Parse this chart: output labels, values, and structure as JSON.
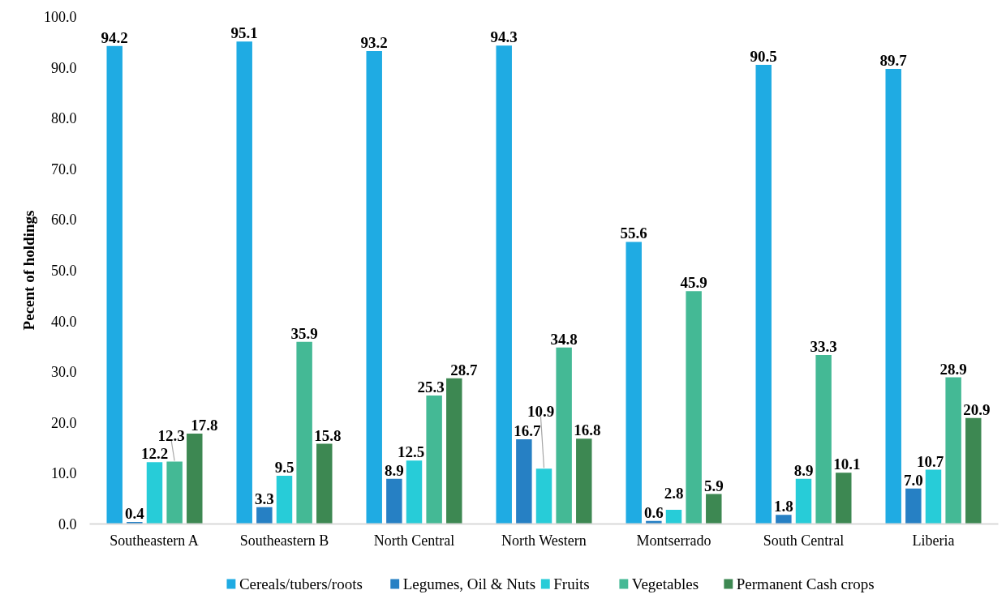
{
  "chart_data": {
    "type": "bar",
    "ylabel": "Pecent of holdings",
    "categories": [
      "Southeastern A",
      "Southeastern B",
      "North Central",
      "North Western",
      "Montserrado",
      "South Central",
      "Liberia"
    ],
    "series": [
      {
        "name": "Cereals/tubers/roots",
        "color": "#1fabe3",
        "values": [
          94.2,
          95.1,
          93.2,
          94.3,
          55.6,
          90.5,
          89.7
        ],
        "value_labels": [
          "94.2",
          "95.1",
          "93.2",
          "94.3",
          "55.6",
          "90.5",
          "89.7"
        ]
      },
      {
        "name": "Legumes, Oil & Nuts",
        "color": "#2680c4",
        "values": [
          0.4,
          3.3,
          8.9,
          16.7,
          0.6,
          1.8,
          7.0
        ],
        "value_labels": [
          "0.4",
          "3.3",
          "8.9",
          "16.7",
          "0.6",
          "1.8",
          "7.0"
        ]
      },
      {
        "name": "Fruits",
        "color": "#27ccd8",
        "values": [
          12.2,
          9.5,
          12.5,
          10.9,
          2.8,
          8.9,
          10.7
        ],
        "value_labels": [
          "12.2",
          "9.5",
          "12.5",
          "10.9",
          "2.8",
          "8.9",
          "10.7"
        ]
      },
      {
        "name": "Vegetables",
        "color": "#44b995",
        "values": [
          12.3,
          35.9,
          25.3,
          34.8,
          45.9,
          33.3,
          28.9
        ],
        "value_labels": [
          "12.3",
          "35.9",
          "25.3",
          "34.8",
          "45.9",
          "33.3",
          "28.9"
        ]
      },
      {
        "name": "Permanent Cash crops",
        "color": "#3d8852",
        "values": [
          17.8,
          15.8,
          28.7,
          16.8,
          5.9,
          10.1,
          20.9
        ],
        "value_labels": [
          "17.8",
          "15.8",
          "28.7",
          "16.8",
          "5.9",
          "10.1",
          "20.9"
        ]
      }
    ],
    "ylim": [
      0,
      100
    ],
    "yticks": [
      {
        "value": 0,
        "label": "0.0"
      },
      {
        "value": 10,
        "label": "10.0"
      },
      {
        "value": 20,
        "label": "20.0"
      },
      {
        "value": 30,
        "label": "30.0"
      },
      {
        "value": 40,
        "label": "40.0"
      },
      {
        "value": 50,
        "label": "50.0"
      },
      {
        "value": 60,
        "label": "60.0"
      },
      {
        "value": 70,
        "label": "70.0"
      },
      {
        "value": 80,
        "label": "80.0"
      },
      {
        "value": 90,
        "label": "90.0"
      },
      {
        "value": 100,
        "label": "100.0"
      }
    ],
    "legend": "bottom"
  }
}
